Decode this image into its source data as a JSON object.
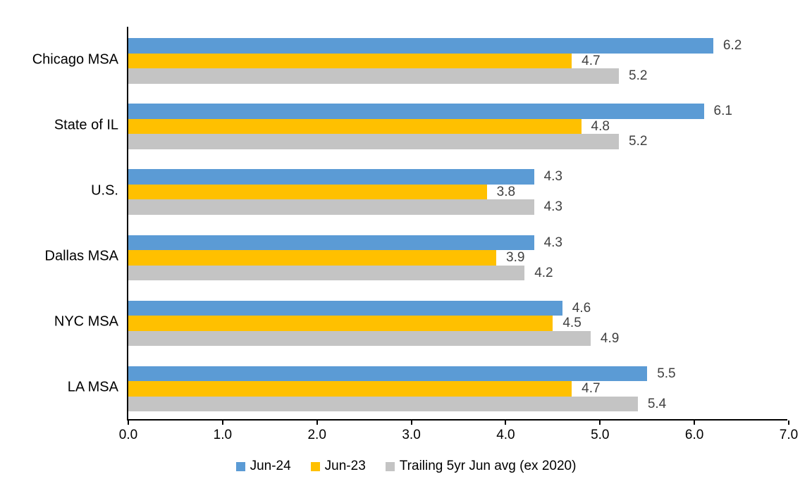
{
  "chart_data": {
    "type": "bar",
    "orientation": "horizontal",
    "title": "",
    "xlabel": "",
    "ylabel": "",
    "categories": [
      "Chicago MSA",
      "State of IL",
      "U.S.",
      "Dallas MSA",
      "NYC MSA",
      "LA MSA"
    ],
    "series": [
      {
        "name": "Jun-24",
        "color": "#5B9BD5",
        "values": [
          6.2,
          6.1,
          4.3,
          4.3,
          4.6,
          5.5
        ]
      },
      {
        "name": "Jun-23",
        "color": "#FFC000",
        "values": [
          4.7,
          4.8,
          3.8,
          3.9,
          4.5,
          4.7
        ]
      },
      {
        "name": "Trailing 5yr Jun avg (ex 2020)",
        "color": "#C4C4C4",
        "values": [
          5.2,
          5.2,
          4.3,
          4.2,
          4.9,
          5.4
        ]
      }
    ],
    "data_labels": [
      [
        "6.2",
        "4.7",
        "5.2"
      ],
      [
        "6.1",
        "4.8",
        "5.2"
      ],
      [
        "4.3",
        "3.8",
        "4.3"
      ],
      [
        "4.3",
        "3.9",
        "4.2"
      ],
      [
        "4.6",
        "4.5",
        "4.9"
      ],
      [
        "5.5",
        "4.7",
        "5.4"
      ]
    ],
    "xlim": [
      0,
      7
    ],
    "x_ticks": [
      "0.0",
      "1.0",
      "2.0",
      "3.0",
      "4.0",
      "5.0",
      "6.0",
      "7.0"
    ],
    "grid": false,
    "legend_position": "bottom",
    "colors": {
      "axis": "#000000",
      "data_label": "#404040",
      "background": "#ffffff"
    }
  }
}
